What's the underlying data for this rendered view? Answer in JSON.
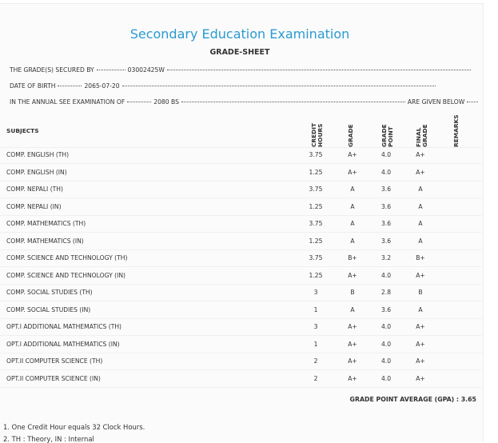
{
  "header": {
    "title": "Secondary Education Examination",
    "subtitle": "GRADE-SHEET"
  },
  "info": [
    {
      "label": "THE GRADE(S) SECURED BY",
      "value": "03002425W"
    },
    {
      "label": "DATE OF BIRTH",
      "value": "2065-07-20"
    },
    {
      "label": "IN THE ANNUAL SEE EXAMINATION OF",
      "value": "2080 BS",
      "suffix": "ARE GIVEN BELOW"
    }
  ],
  "table": {
    "columns": [
      "SUBJECTS",
      "CREDIT HOURS",
      "GRADE",
      "GRADE POINT",
      "FINAL GRADE",
      "REMARKS"
    ],
    "rows": [
      [
        "COMP. ENGLISH (TH)",
        "3.75",
        "A+",
        "4.0",
        "A+"
      ],
      [
        "COMP. ENGLISH (IN)",
        "1.25",
        "A+",
        "4.0",
        "A+"
      ],
      [
        "COMP. NEPALI (TH)",
        "3.75",
        "A",
        "3.6",
        "A"
      ],
      [
        "COMP. NEPALI (IN)",
        "1.25",
        "A",
        "3.6",
        "A"
      ],
      [
        "COMP. MATHEMATICS (TH)",
        "3.75",
        "A",
        "3.6",
        "A"
      ],
      [
        "COMP. MATHEMATICS (IN)",
        "1.25",
        "A",
        "3.6",
        "A"
      ],
      [
        "COMP. SCIENCE AND TECHNOLOGY (TH)",
        "3.75",
        "B+",
        "3.2",
        "B+"
      ],
      [
        "COMP. SCIENCE AND TECHNOLOGY (IN)",
        "1.25",
        "A+",
        "4.0",
        "A+"
      ],
      [
        "COMP. SOCIAL STUDIES (TH)",
        "3",
        "B",
        "2.8",
        "B"
      ],
      [
        "COMP. SOCIAL STUDIES (IN)",
        "1",
        "A",
        "3.6",
        "A"
      ],
      [
        "OPT.I ADDITIONAL MATHEMATICS (TH)",
        "3",
        "A+",
        "4.0",
        "A+"
      ],
      [
        "OPT.I ADDITIONAL MATHEMATICS (IN)",
        "1",
        "A+",
        "4.0",
        "A+"
      ],
      [
        "OPT.II COMPUTER SCIENCE (TH)",
        "2",
        "A+",
        "4.0",
        "A+"
      ],
      [
        "OPT.II COMPUTER SCIENCE (IN)",
        "2",
        "A+",
        "4.0",
        "A+"
      ]
    ]
  },
  "gpa": "GRADE POINT AVERAGE (GPA) : 3.65",
  "notes": [
    "1. One Credit Hour equals 32 Clock Hours.",
    "2. TH : Theory, IN : Internal"
  ]
}
